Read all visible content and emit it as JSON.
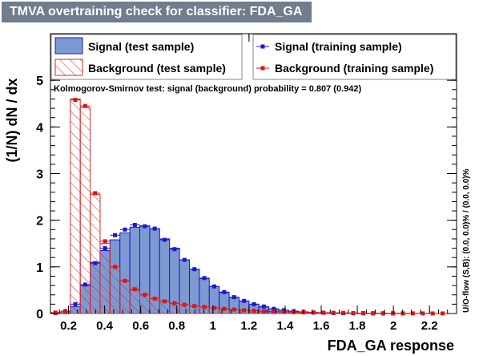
{
  "title": "TMVA overtraining check for classifier: FDA_GA",
  "chart_data": {
    "type": "histogram",
    "xlabel": "FDA_GA response",
    "ylabel": "(1/N) dN / dx",
    "xlim": [
      0.1,
      2.35
    ],
    "ylim": [
      0,
      6
    ],
    "x_ticks": [
      "0.2",
      "0.4",
      "0.6",
      "0.8",
      "1",
      "1.2",
      "1.4",
      "1.6",
      "1.8",
      "2",
      "2.2"
    ],
    "y_ticks": [
      "0",
      "1",
      "2",
      "3",
      "4",
      "5"
    ],
    "bin_edges": [
      0.1,
      0.155,
      0.21,
      0.265,
      0.32,
      0.375,
      0.43,
      0.485,
      0.54,
      0.595,
      0.65,
      0.705,
      0.76,
      0.815,
      0.87,
      0.925,
      0.98,
      1.035,
      1.09,
      1.145,
      1.2,
      1.255,
      1.31,
      1.365,
      1.42,
      1.475,
      1.53,
      1.585,
      1.64,
      1.695,
      1.75,
      1.805,
      1.86,
      1.915,
      1.97,
      2.025,
      2.08,
      2.135,
      2.19,
      2.245,
      2.3
    ],
    "series": [
      {
        "name": "Signal (test sample)",
        "kind": "filled",
        "color": "#7d99d1",
        "values": [
          0,
          0,
          0.15,
          0.6,
          1.1,
          1.35,
          1.58,
          1.73,
          1.85,
          1.88,
          1.82,
          1.6,
          1.4,
          1.15,
          0.95,
          0.75,
          0.58,
          0.45,
          0.35,
          0.27,
          0.2,
          0.14,
          0.1,
          0.07,
          0.05,
          0.03,
          0.02,
          0.015,
          0.01,
          0.008,
          0.005,
          0.004,
          0.003,
          0.002,
          0.001,
          0,
          0,
          0,
          0,
          0
        ]
      },
      {
        "name": "Background (test sample)",
        "kind": "hatched",
        "color": "#d42a2a",
        "values": [
          0,
          0,
          4.6,
          4.42,
          2.55,
          1.5,
          1.0,
          0.7,
          0.5,
          0.4,
          0.32,
          0.27,
          0.22,
          0.19,
          0.16,
          0.14,
          0.12,
          0.1,
          0.085,
          0.07,
          0.06,
          0.05,
          0.04,
          0.035,
          0.03,
          0.025,
          0.02,
          0.017,
          0.014,
          0.012,
          0.01,
          0.008,
          0.006,
          0.005,
          0.004,
          0.003,
          0.002,
          0.002,
          0.001,
          0.001
        ]
      },
      {
        "name": "Signal (training sample)",
        "kind": "markers",
        "color": "#1a1acc",
        "values": [
          0.01,
          0.05,
          0.2,
          0.62,
          1.08,
          1.4,
          1.68,
          1.8,
          1.9,
          1.87,
          1.82,
          1.58,
          1.38,
          1.15,
          0.95,
          0.76,
          0.58,
          0.46,
          0.35,
          0.27,
          0.2,
          0.15,
          0.1,
          0.07,
          0.05,
          0.035,
          0.02,
          0.015,
          0.01,
          0.008,
          0.005,
          0.004,
          0.003,
          0.002,
          0.001,
          0.001,
          0,
          0,
          0,
          0
        ]
      },
      {
        "name": "Background (training sample)",
        "kind": "markers",
        "color": "#e01414",
        "values": [
          0.02,
          0.03,
          4.58,
          4.45,
          2.58,
          1.55,
          1.0,
          0.7,
          0.52,
          0.4,
          0.32,
          0.26,
          0.22,
          0.19,
          0.16,
          0.14,
          0.12,
          0.1,
          0.085,
          0.07,
          0.06,
          0.05,
          0.04,
          0.035,
          0.03,
          0.025,
          0.02,
          0.018,
          0.014,
          0.012,
          0.01,
          0.008,
          0.006,
          0.005,
          0.004,
          0.003,
          0.002,
          0.002,
          0.001,
          0.001
        ]
      }
    ],
    "legend": {
      "placement": "top",
      "entries": [
        "Signal (test sample)",
        "Signal (training sample)",
        "Background (test sample)",
        "Background (training sample)"
      ]
    },
    "annotation": "Kolmogorov-Smirnov test: signal (background) probability = 0.807 (0.942)",
    "side_text": "U/O-flow (S,B): (0.0, 0.0)% / (0.0, 0.0)%"
  }
}
